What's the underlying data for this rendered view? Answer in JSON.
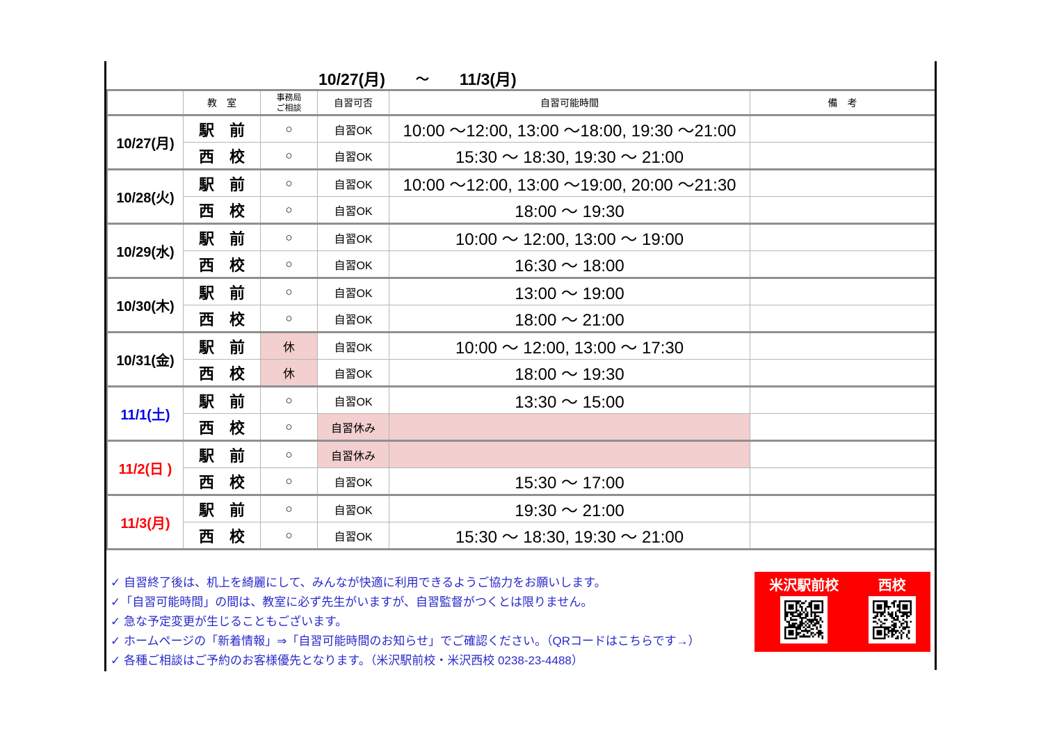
{
  "title": {
    "range_start": "10/27(月)",
    "separator": "～",
    "range_end": "11/3(月)"
  },
  "table": {
    "headers": {
      "date": "",
      "classroom": "教　室",
      "office": "事務局\nご相談",
      "study": "自習可否",
      "hours": "自習可能時間",
      "remark": "備　考"
    },
    "symbols": {
      "open": "○",
      "closed": "休"
    },
    "groups": [
      {
        "date": "10/27(月)",
        "color": "black",
        "rows": [
          {
            "room": "駅　前",
            "office": "○",
            "office_closed": false,
            "study": "自習OK",
            "study_closed": false,
            "hours": "10:00 ～12:00, 13:00 ～18:00, 19:30 ～21:00",
            "remark": ""
          },
          {
            "room": "西　校",
            "office": "○",
            "office_closed": false,
            "study": "自習OK",
            "study_closed": false,
            "hours": "15:30  ～ 18:30, 19:30  ～ 21:00",
            "remark": ""
          }
        ]
      },
      {
        "date": "10/28(火)",
        "color": "black",
        "rows": [
          {
            "room": "駅　前",
            "office": "○",
            "office_closed": false,
            "study": "自習OK",
            "study_closed": false,
            "hours": "10:00 ～12:00, 13:00 ～19:00, 20:00 ～21:30",
            "remark": ""
          },
          {
            "room": "西　校",
            "office": "○",
            "office_closed": false,
            "study": "自習OK",
            "study_closed": false,
            "hours": "18:00  ～ 19:30",
            "remark": ""
          }
        ]
      },
      {
        "date": "10/29(水)",
        "color": "black",
        "rows": [
          {
            "room": "駅　前",
            "office": "○",
            "office_closed": false,
            "study": "自習OK",
            "study_closed": false,
            "hours": "10:00  ～ 12:00, 13:00  ～ 19:00",
            "remark": ""
          },
          {
            "room": "西　校",
            "office": "○",
            "office_closed": false,
            "study": "自習OK",
            "study_closed": false,
            "hours": "16:30  ～ 18:00",
            "remark": ""
          }
        ]
      },
      {
        "date": "10/30(木)",
        "color": "black",
        "rows": [
          {
            "room": "駅　前",
            "office": "○",
            "office_closed": false,
            "study": "自習OK",
            "study_closed": false,
            "hours": "13:00  ～ 19:00",
            "remark": ""
          },
          {
            "room": "西　校",
            "office": "○",
            "office_closed": false,
            "study": "自習OK",
            "study_closed": false,
            "hours": "18:00  ～ 21:00",
            "remark": ""
          }
        ]
      },
      {
        "date": "10/31(金)",
        "color": "black",
        "rows": [
          {
            "room": "駅　前",
            "office": "休",
            "office_closed": true,
            "study": "自習OK",
            "study_closed": false,
            "hours": "10:00  ～ 12:00, 13:00  ～ 17:30",
            "remark": ""
          },
          {
            "room": "西　校",
            "office": "休",
            "office_closed": true,
            "study": "自習OK",
            "study_closed": false,
            "hours": "18:00  ～ 19:30",
            "remark": ""
          }
        ]
      },
      {
        "date": "11/1(土)",
        "color": "blue",
        "rows": [
          {
            "room": "駅　前",
            "office": "○",
            "office_closed": false,
            "study": "自習OK",
            "study_closed": false,
            "hours": "13:30  ～ 15:00",
            "remark": ""
          },
          {
            "room": "西　校",
            "office": "○",
            "office_closed": false,
            "study": "自習休み",
            "study_closed": true,
            "hours": "",
            "remark": ""
          }
        ]
      },
      {
        "date": "11/2(日 )",
        "color": "red",
        "rows": [
          {
            "room": "駅　前",
            "office": "○",
            "office_closed": false,
            "study": "自習休み",
            "study_closed": true,
            "hours": "",
            "remark": ""
          },
          {
            "room": "西　校",
            "office": "○",
            "office_closed": false,
            "study": "自習OK",
            "study_closed": false,
            "hours": "15:30  ～ 17:00",
            "remark": ""
          }
        ]
      },
      {
        "date": "11/3(月)",
        "color": "red",
        "rows": [
          {
            "room": "駅　前",
            "office": "○",
            "office_closed": false,
            "study": "自習OK",
            "study_closed": false,
            "hours": "19:30  ～ 21:00",
            "remark": ""
          },
          {
            "room": "西　校",
            "office": "○",
            "office_closed": false,
            "study": "自習OK",
            "study_closed": false,
            "hours": "15:30  ～ 18:30, 19:30  ～ 21:00",
            "remark": ""
          }
        ]
      }
    ]
  },
  "notes": {
    "items": [
      "✓ 自習終了後は、机上を綺麗にして、みんなが快適に利用できるようご協力をお願いします。",
      "✓「自習可能時間」の間は、教室に必ず先生がいますが、自習監督がつくとは限りません。",
      "✓ 急な予定変更が生じることもございます。",
      "✓ ホームページの「新着情報」⇒「自習可能時間のお知らせ」でご確認ください。（QRコードはこちらです→）",
      "✓ 各種ご相談はご予約のお客様優先となります。（米沢駅前校・米沢西校 0238-23-4488）"
    ]
  },
  "qr_panel": {
    "labels": [
      "米沢駅前校",
      "西校"
    ],
    "icons": [
      "qr-code",
      "qr-code"
    ]
  },
  "colors": {
    "closed_pink": "#f3cfcf",
    "panel_red": "#ff0000",
    "date_blue": "#0000ee",
    "date_red": "#ff0000",
    "notes_blue": "#2929cc",
    "grid_gray": "#b5b5b5",
    "grid_gray_thick": "#8f8f8f",
    "page_line_black": "#000000"
  }
}
